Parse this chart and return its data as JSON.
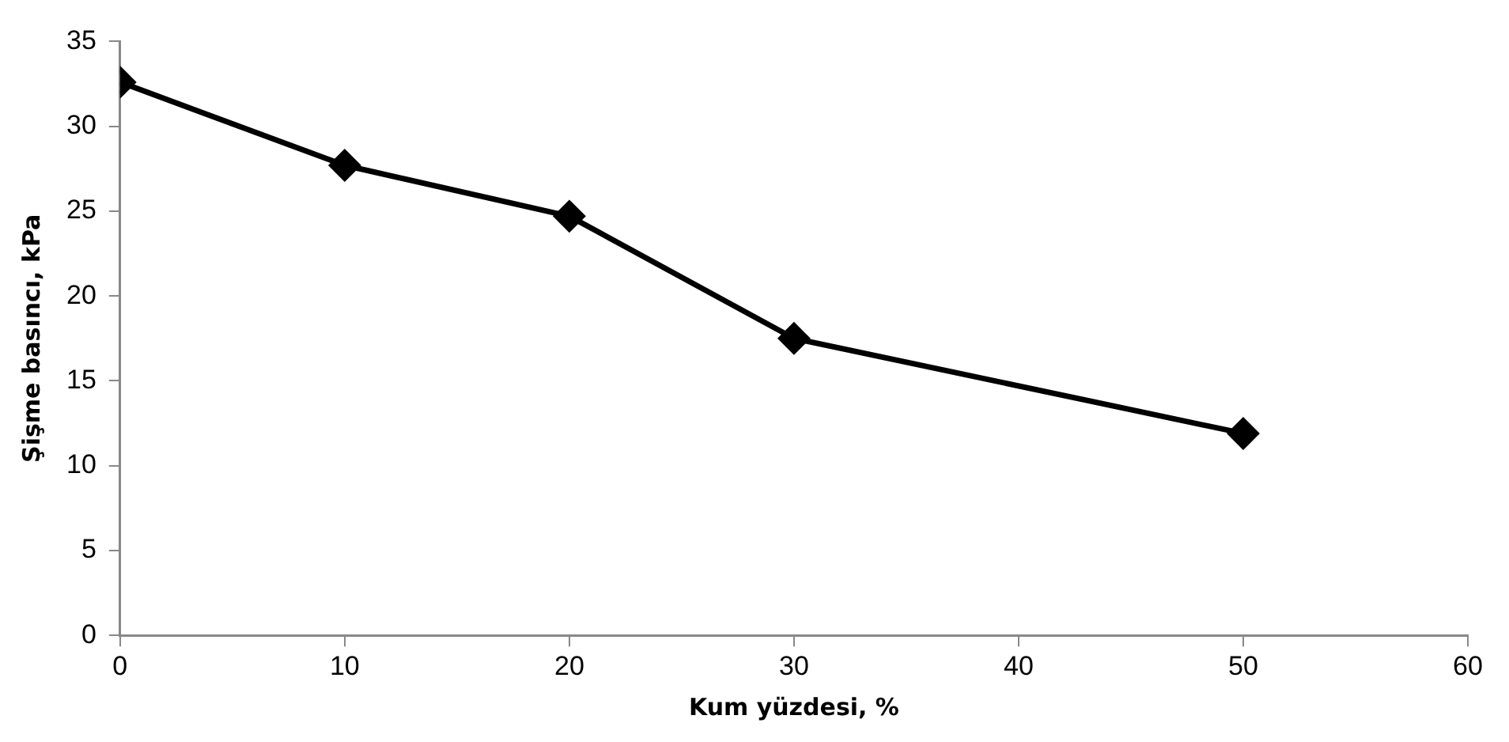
{
  "chart_data": {
    "type": "line",
    "xlabel": "Kum yüzdesi, %",
    "ylabel": "Şişme basıncı, kPa",
    "x": [
      0,
      10,
      20,
      30,
      50
    ],
    "series": [
      {
        "color": "#000000",
        "values": [
          32.6,
          27.7,
          24.7,
          17.5,
          11.9
        ]
      }
    ],
    "xlim": [
      0,
      60
    ],
    "xticks": [
      0,
      10,
      20,
      30,
      40,
      50,
      60
    ],
    "ylim": [
      0,
      35
    ],
    "yticks": [
      0,
      5,
      10,
      15,
      20,
      25,
      30,
      35
    ],
    "grid": false,
    "legend": false,
    "marker": "diamond",
    "line_style": "solid"
  }
}
